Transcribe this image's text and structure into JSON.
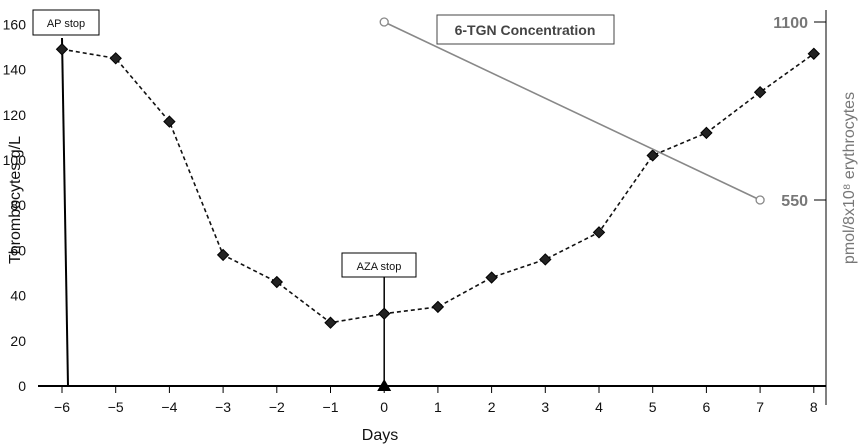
{
  "chart_data": {
    "type": "line",
    "xlabel": "Days",
    "ylabel": "Thrombocytes g/L",
    "y2label": "pmol/8x10⁸ erythrocytes",
    "x_ticks": [
      "−6",
      "−5",
      "−4",
      "−3",
      "−2",
      "−1",
      "0",
      "1",
      "2",
      "3",
      "4",
      "5",
      "6",
      "7",
      "8"
    ],
    "x_range": [
      -6,
      8
    ],
    "y_ticks": [
      "0",
      "20",
      "40",
      "60",
      "80",
      "100",
      "120",
      "140",
      "160"
    ],
    "ylim": [
      0,
      160
    ],
    "y2_ticks": [
      "550",
      "1100"
    ],
    "grid": false,
    "series": [
      {
        "style": "dashed line with diamond markers",
        "color": "#111111",
        "x": [
          -6,
          -5,
          -4,
          -3,
          -2,
          -1,
          0,
          1,
          2,
          3,
          4,
          5,
          6,
          7,
          8
        ],
        "y": [
          149,
          145,
          117,
          58,
          46,
          28,
          32,
          35,
          48,
          56,
          68,
          102,
          112,
          130,
          147
        ]
      },
      {
        "name": "6-TGN Concentration",
        "style": "solid gray line with open circle markers",
        "color": "#888888",
        "axis": "right",
        "x": [
          0,
          7
        ],
        "y": [
          1100,
          550
        ]
      }
    ],
    "annotations": [
      {
        "label": "AP stop",
        "x": -6,
        "marker": "vertical line"
      },
      {
        "label": "AZA stop",
        "x": 0,
        "marker": "vertical line with triangle"
      }
    ],
    "legend": "top-center"
  }
}
